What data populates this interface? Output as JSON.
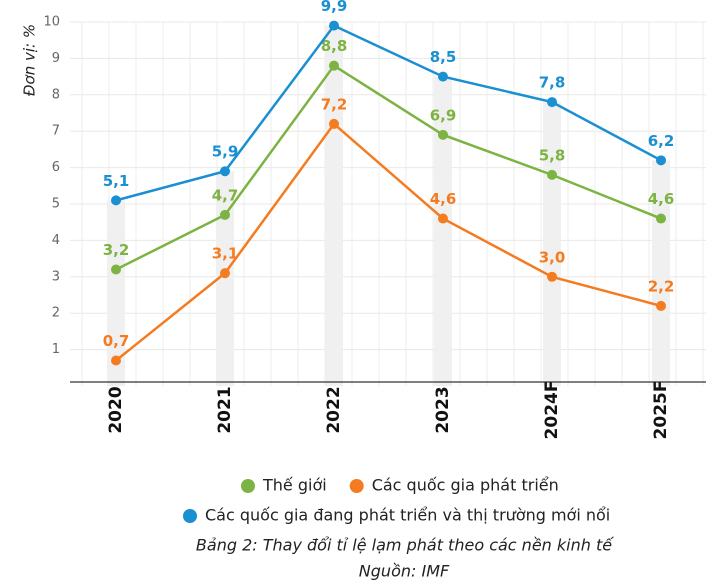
{
  "chart_data": {
    "type": "line",
    "y_label": "Đơn vị: %",
    "categories": [
      "2020",
      "2021",
      "2022",
      "2023",
      "2024F",
      "2025F"
    ],
    "series": [
      {
        "name": "Thế giới",
        "color": "#7cb342",
        "values": [
          3.2,
          4.7,
          8.8,
          6.9,
          5.8,
          4.6
        ],
        "value_labels": [
          "3,2",
          "4,7",
          "8,8",
          "6,9",
          "5,8",
          "4,6"
        ]
      },
      {
        "name": "Các quốc gia phát triển",
        "color": "#f47b20",
        "values": [
          0.7,
          3.1,
          7.2,
          4.6,
          3.0,
          2.2
        ],
        "value_labels": [
          "0,7",
          "3,1",
          "7,2",
          "4,6",
          "3,0",
          "2,2"
        ]
      },
      {
        "name": "Các quốc gia đang phát triển và thị trường mới nổi",
        "color": "#1a8fd1",
        "values": [
          5.1,
          5.9,
          9.9,
          8.5,
          7.8,
          6.2
        ],
        "value_labels": [
          "5,1",
          "5,9",
          "9,9",
          "8,5",
          "7,8",
          "6,2"
        ]
      }
    ],
    "ylim": [
      0,
      10
    ],
    "yticks": [
      1,
      2,
      3,
      4,
      5,
      6,
      7,
      8,
      9,
      10
    ],
    "grid": true,
    "caption": "Bảng 2: Thay đổi tỉ lệ lạm phát theo các nền kinh tế",
    "source": "Nguồn: IMF"
  }
}
